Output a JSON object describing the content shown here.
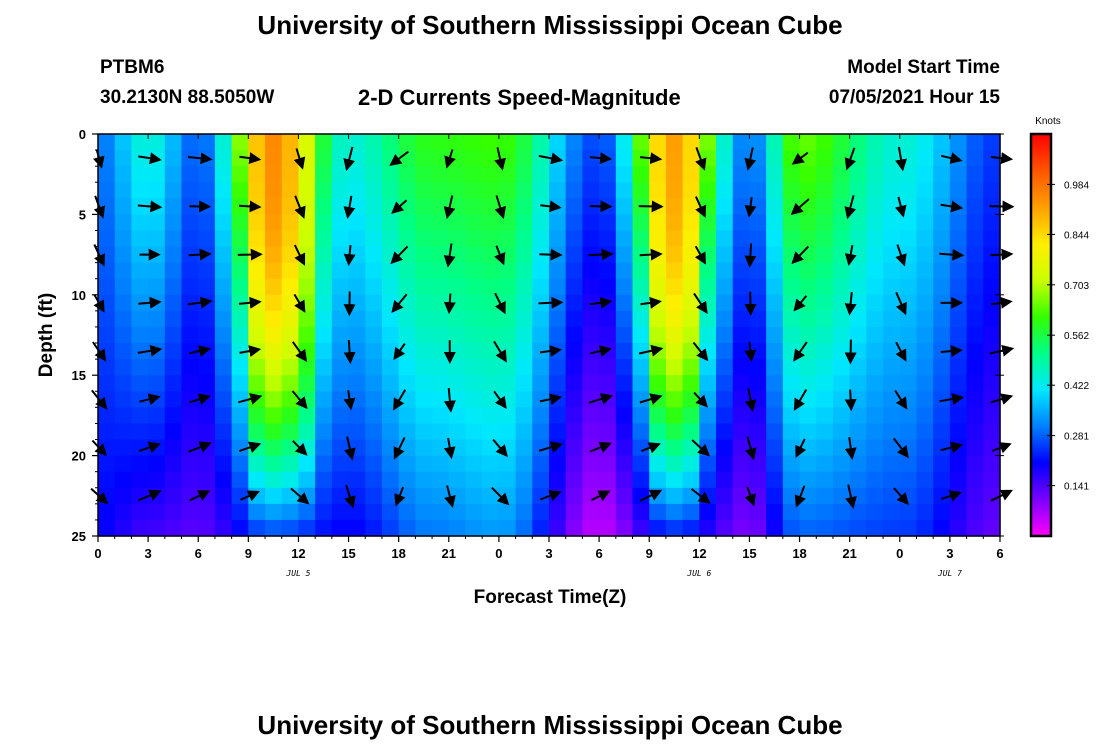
{
  "page": {
    "title_top": "University of Southern Mississippi Ocean Cube",
    "title_bottom": "University of Southern Mississippi Ocean Cube",
    "station": "PTBM6",
    "coords": "30.2130N  88.5050W",
    "subtitle": "2-D Currents Speed-Magnitude",
    "model_start_label": "Model Start Time",
    "model_start_value": "07/05/2021 Hour 15"
  },
  "chart_data": {
    "type": "heatmap",
    "title": "2-D Currents Speed-Magnitude",
    "xlabel": "Forecast Time(Z)",
    "ylabel": "Depth (ft)",
    "x_hours": [
      0,
      54
    ],
    "y_depth_ft": [
      0,
      25
    ],
    "x_tick_labels": [
      "0",
      "3",
      "6",
      "9",
      "12",
      "15",
      "18",
      "21",
      "0",
      "3",
      "6",
      "9",
      "12",
      "15",
      "18",
      "21",
      "0",
      "3",
      "6"
    ],
    "y_tick_labels": [
      "0",
      "5",
      "10",
      "15",
      "20",
      "25"
    ],
    "date_labels": [
      {
        "text": "JUL 5",
        "hour": 12
      },
      {
        "text": "JUL 6",
        "hour": 36
      },
      {
        "text": "JUL 7",
        "hour": 51
      }
    ],
    "colorbar": {
      "title": "Knots",
      "ticks": [
        "0.984",
        "0.844",
        "0.703",
        "0.562",
        "0.422",
        "0.281",
        "0.141"
      ],
      "tick_values": [
        0.984,
        0.844,
        0.703,
        0.562,
        0.422,
        0.281,
        0.141
      ],
      "vmin": 0.0,
      "vmax": 1.125,
      "colors": [
        "#ff00ff",
        "#7a00ff",
        "#0000ff",
        "#0080ff",
        "#00e8ff",
        "#00ff88",
        "#33ff00",
        "#ccff00",
        "#ffee00",
        "#ffa000",
        "#ff5500",
        "#ff0000"
      ]
    },
    "speed_profile_knots": [
      {
        "hour": 0,
        "surface": 0.3,
        "bottom": 0.2
      },
      {
        "hour": 3,
        "surface": 0.45,
        "bottom": 0.15
      },
      {
        "hour": 6,
        "surface": 0.28,
        "bottom": 0.13
      },
      {
        "hour": 10.5,
        "surface": 0.95,
        "bottom": 0.25
      },
      {
        "hour": 15,
        "surface": 0.45,
        "bottom": 0.2
      },
      {
        "hour": 20,
        "surface": 0.6,
        "bottom": 0.3
      },
      {
        "hour": 24,
        "surface": 0.62,
        "bottom": 0.33
      },
      {
        "hour": 30,
        "surface": 0.26,
        "bottom": 0.05
      },
      {
        "hour": 34.5,
        "surface": 0.92,
        "bottom": 0.22
      },
      {
        "hour": 39,
        "surface": 0.3,
        "bottom": 0.1
      },
      {
        "hour": 42,
        "surface": 0.65,
        "bottom": 0.28
      },
      {
        "hour": 48,
        "surface": 0.45,
        "bottom": 0.25
      },
      {
        "hour": 54,
        "surface": 0.25,
        "bottom": 0.12
      }
    ]
  }
}
